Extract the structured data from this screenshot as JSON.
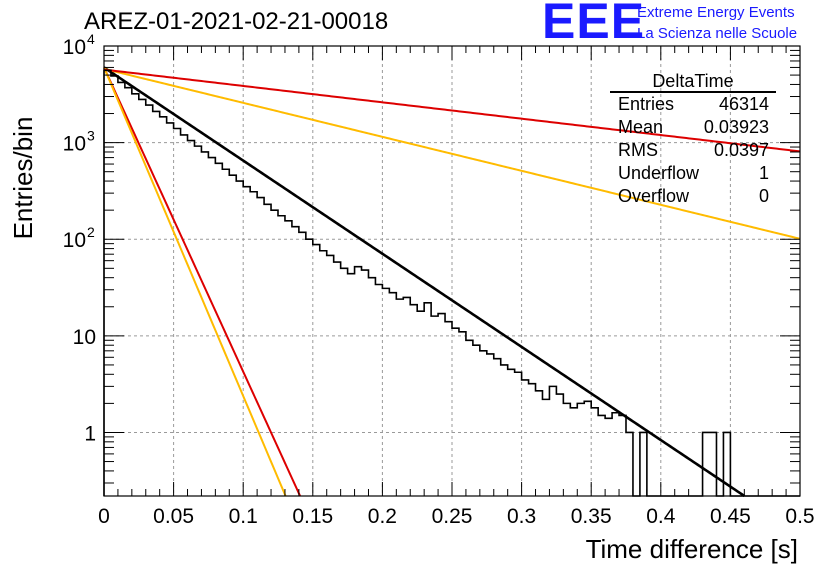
{
  "header": {
    "title": "AREZ-01-2021-02-21-00018",
    "logo": {
      "mark": "EEE",
      "line1": "Extreme Energy Events",
      "line2": "La Scienza nelle Scuole",
      "color": "#1a1aff"
    }
  },
  "stats_box": {
    "title": "DeltaTime",
    "rows": [
      {
        "label": "Entries",
        "value": "46314"
      },
      {
        "label": "Mean",
        "value": "0.03923"
      },
      {
        "label": "RMS",
        "value": "0.0397"
      },
      {
        "label": "Underflow",
        "value": "1"
      },
      {
        "label": "Overflow",
        "value": "0"
      }
    ]
  },
  "chart_data": {
    "type": "line",
    "title": "AREZ-01-2021-02-21-00018",
    "xlabel": "Time difference [s]",
    "ylabel": "Entries/bin",
    "xlim": [
      0,
      0.5
    ],
    "ylim": [
      0.22,
      10000
    ],
    "y_scale": "log",
    "grid": true,
    "x_ticks": [
      "0",
      "0.05",
      "0.1",
      "0.15",
      "0.2",
      "0.25",
      "0.3",
      "0.35",
      "0.4",
      "0.45",
      "0.5"
    ],
    "y_ticks": [
      {
        "value": 1,
        "label": "1",
        "exponent": ""
      },
      {
        "value": 10,
        "label": "10",
        "exponent": ""
      },
      {
        "value": 100,
        "label": "10",
        "exponent": "2"
      },
      {
        "value": 1000,
        "label": "10",
        "exponent": "3"
      },
      {
        "value": 10000,
        "label": "10",
        "exponent": "4"
      }
    ],
    "histogram": {
      "name": "DeltaTime",
      "color": "#000000",
      "bin_width": 0.005,
      "values": [
        5600,
        4900,
        4200,
        3700,
        3200,
        2800,
        2450,
        2100,
        1850,
        1600,
        1400,
        1200,
        1050,
        920,
        800,
        700,
        610,
        530,
        460,
        400,
        350,
        310,
        270,
        230,
        200,
        175,
        155,
        135,
        118,
        100,
        88,
        76,
        68,
        58,
        50,
        44,
        52,
        48,
        40,
        34,
        31,
        28,
        24,
        25,
        21,
        18,
        22,
        16,
        17,
        14,
        12,
        11,
        9,
        8,
        7,
        6.5,
        5.8,
        5,
        4.5,
        4.2,
        3.5,
        3.2,
        2.7,
        2.2,
        3,
        2.5,
        2,
        1.8,
        2,
        2.1,
        1.8,
        1.5,
        1.4,
        1.6,
        1.5,
        1,
        0,
        1,
        0,
        0,
        0.2,
        0,
        0,
        0,
        0,
        0,
        1,
        1,
        0,
        1,
        0,
        0,
        0,
        0,
        0,
        0,
        0,
        0,
        0,
        0
      ]
    },
    "fits": [
      {
        "name": "data fit",
        "color": "#000000",
        "amplitude": 6000,
        "slope": 22.2
      },
      {
        "name": "red steep",
        "color": "#dd0000",
        "amplitude": 6000,
        "slope": 72.5
      },
      {
        "name": "orange steep",
        "color": "#ffbb00",
        "amplitude": 6000,
        "slope": 78.3
      },
      {
        "name": "orange shallow",
        "color": "#ffbb00",
        "amplitude": 5800,
        "slope": 8.1
      },
      {
        "name": "red shallow",
        "color": "#dd0000",
        "amplitude": 5700,
        "slope": 3.9
      }
    ]
  }
}
